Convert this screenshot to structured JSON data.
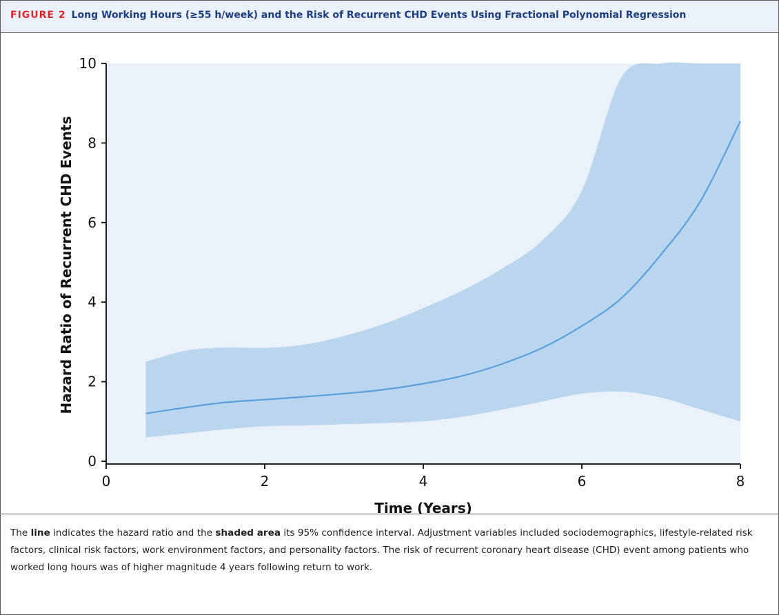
{
  "figure": {
    "label": "FIGURE 2",
    "title": "Long Working Hours (≥55 h/week) and the Risk of Recurrent CHD Events Using Fractional Polynomial Regression"
  },
  "chart_data": {
    "type": "line",
    "xlabel": "Time (Years)",
    "ylabel": "Hazard Ratio of Recurrent CHD Events",
    "xlim": [
      0,
      8
    ],
    "ylim": [
      0,
      10
    ],
    "x_ticks": [
      0,
      2,
      4,
      6,
      8
    ],
    "y_ticks": [
      0,
      2,
      4,
      6,
      8,
      10
    ],
    "grid": false,
    "legend": "none",
    "colors": {
      "line": "#5aa0dc",
      "band": "#bad5ee",
      "plot_background": "#eaf1fa",
      "axis": "#222222"
    },
    "series": [
      {
        "x": [
          0.5,
          1.0,
          1.5,
          2.0,
          2.5,
          3.0,
          3.5,
          4.0,
          4.5,
          5.0,
          5.5,
          6.0,
          6.5,
          7.0,
          7.5,
          8.0
        ],
        "values": [
          1.2,
          1.35,
          1.48,
          1.55,
          1.62,
          1.7,
          1.8,
          1.95,
          2.15,
          2.45,
          2.85,
          3.4,
          4.1,
          5.2,
          6.55,
          8.55
        ]
      }
    ],
    "band": {
      "x": [
        0.5,
        1.0,
        1.5,
        2.0,
        2.5,
        3.0,
        3.5,
        4.0,
        4.5,
        5.0,
        5.5,
        6.0,
        6.5,
        7.0,
        7.5,
        8.0
      ],
      "lower": [
        0.6,
        0.7,
        0.8,
        0.88,
        0.9,
        0.93,
        0.96,
        1.0,
        1.12,
        1.3,
        1.5,
        1.7,
        1.75,
        1.6,
        1.3,
        1.0
      ],
      "upper": [
        2.5,
        2.78,
        2.86,
        2.85,
        2.93,
        3.15,
        3.45,
        3.85,
        4.3,
        4.85,
        5.55,
        6.8,
        9.65,
        10.0,
        10.0,
        10.0
      ]
    }
  },
  "caption": {
    "part1": "The ",
    "bold1": "line",
    "part2": " indicates the hazard ratio and the ",
    "bold2": "shaded area",
    "part3": " its 95% confidence interval. Adjustment variables included sociodemographics, lifestyle-related risk factors, clinical risk factors, work environment factors, and personality factors. The risk of recurrent coronary heart disease (CHD) event among patients who worked long hours was of higher magnitude 4 years following return to work."
  }
}
